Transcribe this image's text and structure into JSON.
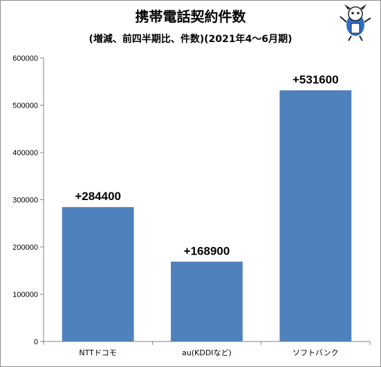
{
  "chart_data": {
    "type": "bar",
    "title": "携帯電話契約件数",
    "subtitle": "(増減、前四半期比、件数)(2021年4～6月期)",
    "categories": [
      "NTTドコモ",
      "au(KDDIなど)",
      "ソフトバンク"
    ],
    "values": [
      284400,
      168900,
      531600
    ],
    "data_labels": [
      "+284400",
      "+168900",
      "+531600"
    ],
    "y_ticks": [
      "0",
      "100000",
      "200000",
      "300000",
      "400000",
      "500000",
      "600000"
    ],
    "ylim": [
      0,
      600000
    ],
    "grid": false,
    "legend": "none",
    "bar_color": "#4f81bd"
  }
}
